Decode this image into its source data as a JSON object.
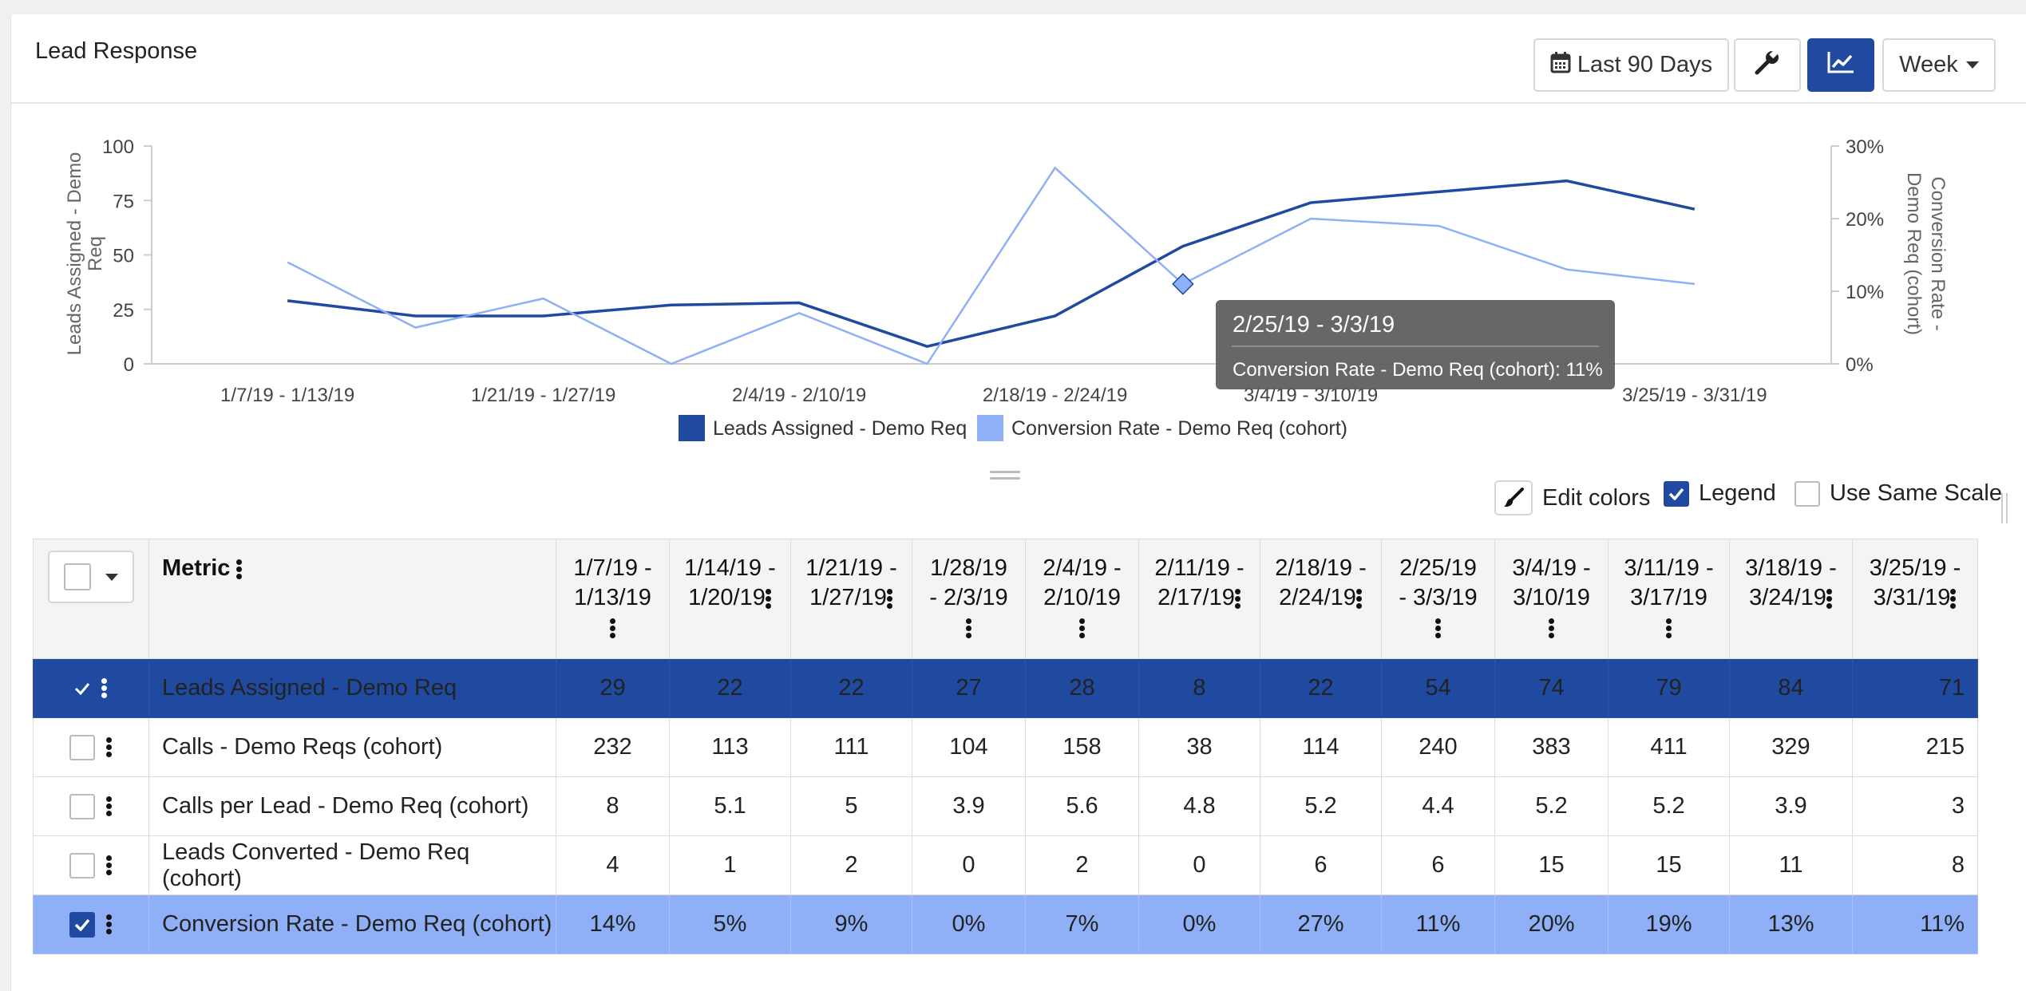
{
  "header": {
    "title": "Lead Response",
    "date_range_label": "Last 90 Days",
    "interval_label": "Week"
  },
  "chart_data": {
    "type": "line",
    "categories": [
      "1/7/19 - 1/13/19",
      "1/14/19 - 1/20/19",
      "1/21/19 - 1/27/19",
      "1/28/19 - 2/3/19",
      "2/4/19 - 2/10/19",
      "2/11/19 - 2/17/19",
      "2/18/19 - 2/24/19",
      "2/25/19 - 3/3/19",
      "3/4/19 - 3/10/19",
      "3/11/19 - 3/17/19",
      "3/18/19 - 3/24/19",
      "3/25/19 - 3/31/19"
    ],
    "x_tick_labels": [
      "1/7/19 - 1/13/19",
      "1/21/19 - 1/27/19",
      "2/4/19 - 2/10/19",
      "2/18/19 - 2/24/19",
      "3/4/19 - 3/10/19",
      "3/25/19 - 3/31/19"
    ],
    "ylabel_left": "Leads Assigned - Demo Req",
    "ylabel_right": "Conversion Rate - Demo Req (cohort)",
    "ylim_left": [
      0,
      100
    ],
    "ylim_right": [
      0,
      30
    ],
    "yticks_left": [
      "0",
      "25",
      "50",
      "75",
      "100"
    ],
    "yticks_right": [
      "0%",
      "10%",
      "20%",
      "30%"
    ],
    "legend_position": "bottom-center",
    "series": [
      {
        "name": "Leads Assigned - Demo Req",
        "axis": "left",
        "color": "#1f4aa0",
        "values": [
          29,
          22,
          22,
          27,
          28,
          8,
          22,
          54,
          74,
          79,
          84,
          71
        ]
      },
      {
        "name": "Conversion Rate - Demo Req (cohort)",
        "axis": "right",
        "color": "#8fb0f6",
        "values": [
          14,
          5,
          9,
          0,
          7,
          0,
          27,
          11,
          20,
          19,
          13,
          11
        ]
      }
    ],
    "tooltip": {
      "title": "2/25/19 - 3/3/19",
      "text": "Conversion Rate - Demo Req (cohort): 11%",
      "series_index": 1,
      "point_index": 7
    }
  },
  "controls": {
    "edit_colors_label": "Edit colors",
    "legend_label": "Legend",
    "legend_checked": true,
    "same_scale_label": "Use Same Scale",
    "same_scale_checked": false
  },
  "table": {
    "metric_header": "Metric",
    "columns": [
      {
        "l1": "1/7/19 -",
        "l2": "1/13/19"
      },
      {
        "l1": "1/14/19 -",
        "l2": "1/20/19"
      },
      {
        "l1": "1/21/19 -",
        "l2": "1/27/19"
      },
      {
        "l1": "1/28/19",
        "l2": "- 2/3/19"
      },
      {
        "l1": "2/4/19 -",
        "l2": "2/10/19"
      },
      {
        "l1": "2/11/19 -",
        "l2": "2/17/19"
      },
      {
        "l1": "2/18/19 -",
        "l2": "2/24/19"
      },
      {
        "l1": "2/25/19",
        "l2": "- 3/3/19"
      },
      {
        "l1": "3/4/19 -",
        "l2": "3/10/19"
      },
      {
        "l1": "3/11/19 -",
        "l2": "3/17/19"
      },
      {
        "l1": "3/18/19 -",
        "l2": "3/24/19"
      },
      {
        "l1": "3/25/19 -",
        "l2": "3/31/19"
      }
    ],
    "rows": [
      {
        "name": "Leads Assigned - Demo Req",
        "checked": true,
        "values": [
          "29",
          "22",
          "22",
          "27",
          "28",
          "8",
          "22",
          "54",
          "74",
          "79",
          "84",
          "71"
        ]
      },
      {
        "name": "Calls - Demo Reqs (cohort)",
        "checked": false,
        "values": [
          "232",
          "113",
          "111",
          "104",
          "158",
          "38",
          "114",
          "240",
          "383",
          "411",
          "329",
          "215"
        ]
      },
      {
        "name": "Calls per Lead - Demo Req (cohort)",
        "checked": false,
        "values": [
          "8",
          "5.1",
          "5",
          "3.9",
          "5.6",
          "4.8",
          "5.2",
          "4.4",
          "5.2",
          "5.2",
          "3.9",
          "3"
        ]
      },
      {
        "name": "Leads Converted - Demo Req (cohort)",
        "checked": false,
        "values": [
          "4",
          "1",
          "2",
          "0",
          "2",
          "0",
          "6",
          "6",
          "15",
          "15",
          "11",
          "8"
        ]
      },
      {
        "name": "Conversion Rate - Demo Req (cohort)",
        "checked": true,
        "values": [
          "14%",
          "5%",
          "9%",
          "0%",
          "7%",
          "0%",
          "27%",
          "11%",
          "20%",
          "19%",
          "13%",
          "11%"
        ]
      }
    ]
  }
}
